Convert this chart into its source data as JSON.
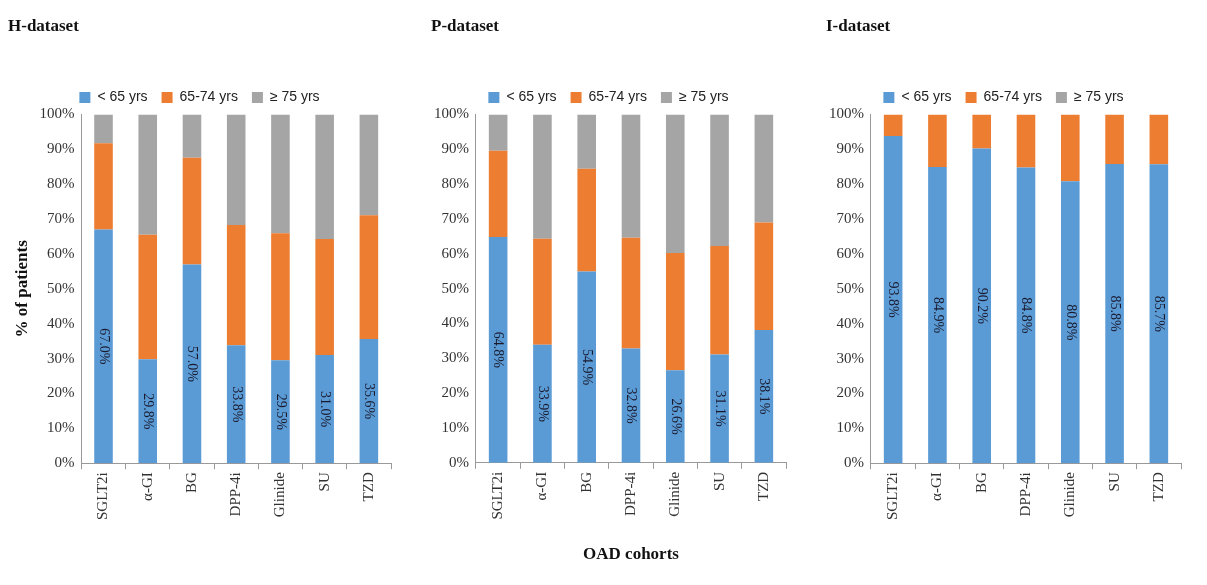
{
  "chart_data": [
    {
      "type": "bar",
      "title": "H-dataset",
      "ylabel": "% of patients",
      "categories": [
        "SGLT2i",
        "α-GI",
        "BG",
        "DPP-4i",
        "Glinide",
        "SU",
        "TZD"
      ],
      "stacked": true,
      "legend": "top",
      "grid": false,
      "ylim": [
        0,
        100
      ],
      "yticks": [
        {
          "value": 0,
          "label": "0%"
        },
        {
          "value": 10,
          "label": "10%"
        },
        {
          "value": 20,
          "label": "20%"
        },
        {
          "value": 30,
          "label": "30%"
        },
        {
          "value": 40,
          "label": "40%"
        },
        {
          "value": 50,
          "label": "50%"
        },
        {
          "value": 60,
          "label": "60%"
        },
        {
          "value": 70,
          "label": "70%"
        },
        {
          "value": 80,
          "label": "80%"
        },
        {
          "value": 90,
          "label": "90%"
        },
        {
          "value": 100,
          "label": "100%"
        }
      ],
      "series": [
        {
          "name": "< 65 yrs",
          "color": "#5b9bd5",
          "values": [
            67.0,
            29.8,
            57.0,
            33.8,
            29.5,
            31.0,
            35.6
          ],
          "value_labels": [
            "67.0%",
            "29.8%",
            "57.0%",
            "33.8%",
            "29.5%",
            "31.0%",
            "35.6%"
          ]
        },
        {
          "name": "65-74 yrs",
          "color": "#ed7d31",
          "values": [
            24.7,
            35.7,
            30.6,
            34.5,
            36.4,
            33.3,
            35.5
          ]
        },
        {
          "name": "≥ 75 yrs",
          "color": "#a5a5a5",
          "values": [
            8.3,
            34.5,
            12.4,
            31.7,
            34.1,
            35.7,
            28.9
          ]
        }
      ]
    },
    {
      "type": "bar",
      "title": "P-dataset",
      "xlabel": "OAD cohorts",
      "categories": [
        "SGLT2i",
        "α-GI",
        "BG",
        "DPP-4i",
        "Glinide",
        "SU",
        "TZD"
      ],
      "stacked": true,
      "legend": "top",
      "grid": false,
      "ylim": [
        0,
        100
      ],
      "yticks": [
        {
          "value": 0,
          "label": "0%"
        },
        {
          "value": 10,
          "label": "10%"
        },
        {
          "value": 20,
          "label": "20%"
        },
        {
          "value": 30,
          "label": "30%"
        },
        {
          "value": 40,
          "label": "40%"
        },
        {
          "value": 50,
          "label": "50%"
        },
        {
          "value": 60,
          "label": "60%"
        },
        {
          "value": 70,
          "label": "70%"
        },
        {
          "value": 80,
          "label": "80%"
        },
        {
          "value": 90,
          "label": "90%"
        },
        {
          "value": 100,
          "label": "100%"
        }
      ],
      "series": [
        {
          "name": "< 65 yrs",
          "color": "#5b9bd5",
          "values": [
            64.8,
            33.9,
            54.9,
            32.8,
            26.6,
            31.1,
            38.1
          ],
          "value_labels": [
            "64.8%",
            "33.9%",
            "54.9%",
            "32.8%",
            "26.6%",
            "31.1%",
            "38.1%"
          ]
        },
        {
          "name": "65-74 yrs",
          "color": "#ed7d31",
          "values": [
            24.8,
            30.4,
            29.5,
            31.8,
            33.6,
            31.1,
            30.9
          ]
        },
        {
          "name": "≥ 75 yrs",
          "color": "#a5a5a5",
          "values": [
            10.4,
            35.7,
            15.6,
            35.4,
            39.8,
            37.8,
            31.0
          ]
        }
      ]
    },
    {
      "type": "bar",
      "title": "I-dataset",
      "categories": [
        "SGLT2i",
        "α-GI",
        "BG",
        "DPP-4i",
        "Glinide",
        "SU",
        "TZD"
      ],
      "stacked": true,
      "legend": "top",
      "grid": false,
      "ylim": [
        0,
        100
      ],
      "yticks": [
        {
          "value": 0,
          "label": "0%"
        },
        {
          "value": 10,
          "label": "10%"
        },
        {
          "value": 20,
          "label": "20%"
        },
        {
          "value": 30,
          "label": "30%"
        },
        {
          "value": 40,
          "label": "40%"
        },
        {
          "value": 50,
          "label": "50%"
        },
        {
          "value": 60,
          "label": "60%"
        },
        {
          "value": 70,
          "label": "70%"
        },
        {
          "value": 80,
          "label": "80%"
        },
        {
          "value": 90,
          "label": "90%"
        },
        {
          "value": 100,
          "label": "100%"
        }
      ],
      "series": [
        {
          "name": "< 65 yrs",
          "color": "#5b9bd5",
          "values": [
            93.8,
            84.9,
            90.2,
            84.8,
            80.8,
            85.8,
            85.7
          ],
          "value_labels": [
            "93.8%",
            "84.9%",
            "90.2%",
            "84.8%",
            "80.8%",
            "85.8%",
            "85.7%"
          ]
        },
        {
          "name": "65-74 yrs",
          "color": "#ed7d31",
          "values": [
            6.2,
            15.1,
            9.8,
            15.2,
            19.2,
            14.2,
            14.3
          ]
        },
        {
          "name": "≥ 75 yrs",
          "color": "#a5a5a5",
          "values": [
            0,
            0,
            0,
            0,
            0,
            0,
            0
          ]
        }
      ]
    }
  ]
}
